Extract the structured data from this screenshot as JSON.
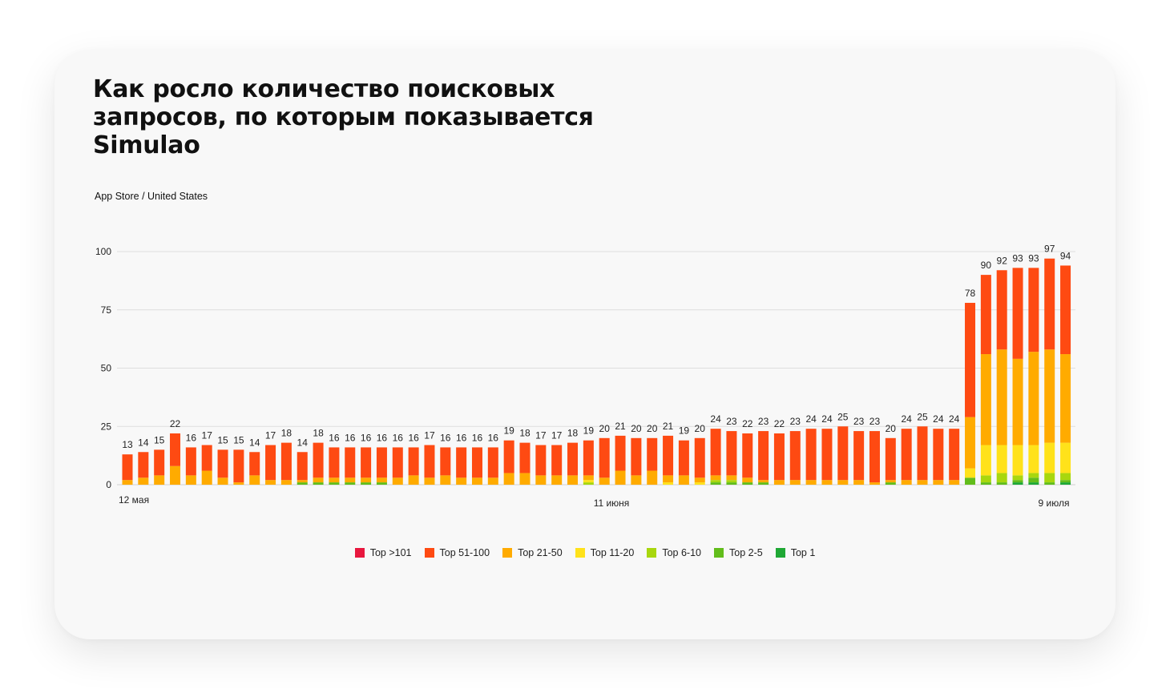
{
  "header": {
    "title": "Как росло количество поисковых\nзапросов, по которым показывается\nSimulao",
    "subtitle": "App Store / United States"
  },
  "chart_data": {
    "type": "bar",
    "stacked": true,
    "title": "Как росло количество поисковых запросов, по которым показывается Simulao",
    "ylim": [
      0,
      100
    ],
    "yticks": [
      0,
      25,
      50,
      75,
      100
    ],
    "x_tick_labels": [
      {
        "index": 0,
        "label": "12 мая"
      },
      {
        "index": 30,
        "label": "11 июня"
      },
      {
        "index": 58,
        "label": "9 июля"
      }
    ],
    "grid": true,
    "legend_position": "bottom-center",
    "totals": [
      13,
      14,
      15,
      22,
      16,
      17,
      15,
      15,
      14,
      17,
      18,
      14,
      18,
      16,
      16,
      16,
      16,
      16,
      16,
      17,
      16,
      16,
      16,
      16,
      19,
      18,
      17,
      17,
      18,
      19,
      20,
      21,
      20,
      20,
      21,
      19,
      20,
      24,
      23,
      22,
      23,
      22,
      23,
      24,
      24,
      25,
      23,
      23,
      20,
      24,
      25,
      24,
      24,
      78,
      90,
      92,
      93,
      93,
      97,
      94
    ],
    "series": [
      {
        "name": "Top >101",
        "color": "#e8173e",
        "values": [
          0,
          0,
          0,
          0,
          0,
          0,
          0,
          0,
          0,
          0,
          0,
          0,
          0,
          0,
          0,
          0,
          0,
          0,
          0,
          0,
          0,
          0,
          0,
          0,
          0,
          0,
          0,
          0,
          0,
          0,
          0,
          0,
          0,
          0,
          0,
          0,
          0,
          0,
          0,
          0,
          0,
          0,
          0,
          0,
          0,
          0,
          0,
          0,
          0,
          0,
          0,
          0,
          0,
          0,
          0,
          0,
          0,
          0,
          0,
          0
        ]
      },
      {
        "name": "Top 51-100",
        "color": "#fe4a12",
        "values": [
          11,
          11,
          11,
          14,
          12,
          11,
          12,
          14,
          10,
          15,
          16,
          12,
          15,
          13,
          13,
          13,
          13,
          13,
          12,
          14,
          12,
          13,
          13,
          13,
          14,
          13,
          13,
          13,
          14,
          15,
          17,
          15,
          16,
          14,
          17,
          15,
          17,
          20,
          19,
          19,
          21,
          20,
          21,
          22,
          22,
          23,
          21,
          22,
          18,
          22,
          23,
          22,
          22,
          49,
          34,
          34,
          39,
          36,
          39,
          38
        ]
      },
      {
        "name": "Top 21-50",
        "color": "#ffab00",
        "values": [
          2,
          3,
          4,
          8,
          4,
          6,
          3,
          1,
          4,
          2,
          2,
          1,
          2,
          2,
          2,
          2,
          2,
          3,
          4,
          3,
          4,
          3,
          3,
          3,
          5,
          5,
          4,
          4,
          4,
          2,
          3,
          6,
          4,
          6,
          3,
          4,
          2,
          2,
          2,
          2,
          1,
          2,
          2,
          2,
          2,
          2,
          2,
          1,
          1,
          2,
          2,
          2,
          2,
          22,
          39,
          41,
          37,
          40,
          40,
          38
        ]
      },
      {
        "name": "Top 11-20",
        "color": "#ffe21a",
        "values": [
          0,
          0,
          0,
          0,
          0,
          0,
          0,
          0,
          0,
          0,
          0,
          0,
          0,
          0,
          0,
          0,
          0,
          0,
          0,
          0,
          0,
          0,
          0,
          0,
          0,
          0,
          0,
          0,
          0,
          1,
          0,
          0,
          0,
          0,
          1,
          0,
          1,
          0,
          0,
          0,
          0,
          0,
          0,
          0,
          0,
          0,
          0,
          0,
          0,
          0,
          0,
          0,
          0,
          4,
          13,
          12,
          13,
          12,
          13,
          13
        ]
      },
      {
        "name": "Top 6-10",
        "color": "#a8d70e",
        "values": [
          0,
          0,
          0,
          0,
          0,
          0,
          0,
          0,
          0,
          0,
          0,
          0,
          0,
          0,
          0,
          0,
          0,
          0,
          0,
          0,
          0,
          0,
          0,
          0,
          0,
          0,
          0,
          0,
          0,
          1,
          0,
          0,
          0,
          0,
          0,
          0,
          0,
          1,
          1,
          0,
          0,
          0,
          0,
          0,
          0,
          0,
          0,
          0,
          0,
          0,
          0,
          0,
          0,
          0,
          3,
          4,
          2,
          2,
          4,
          3
        ]
      },
      {
        "name": "Top 2-5",
        "color": "#62bd1b",
        "values": [
          0,
          0,
          0,
          0,
          0,
          0,
          0,
          0,
          0,
          0,
          0,
          1,
          1,
          1,
          1,
          1,
          1,
          0,
          0,
          0,
          0,
          0,
          0,
          0,
          0,
          0,
          0,
          0,
          0,
          0,
          0,
          0,
          0,
          0,
          0,
          0,
          0,
          1,
          1,
          1,
          1,
          0,
          0,
          0,
          0,
          0,
          0,
          0,
          1,
          0,
          0,
          0,
          0,
          3,
          1,
          1,
          1,
          2,
          1,
          1
        ]
      },
      {
        "name": "Top 1",
        "color": "#1fa835",
        "values": [
          0,
          0,
          0,
          0,
          0,
          0,
          0,
          0,
          0,
          0,
          0,
          0,
          0,
          0,
          0,
          0,
          0,
          0,
          0,
          0,
          0,
          0,
          0,
          0,
          0,
          0,
          0,
          0,
          0,
          0,
          0,
          0,
          0,
          0,
          0,
          0,
          0,
          0,
          0,
          0,
          0,
          0,
          0,
          0,
          0,
          0,
          0,
          0,
          0,
          0,
          0,
          0,
          0,
          0,
          0,
          0,
          1,
          1,
          0,
          1
        ]
      }
    ]
  }
}
